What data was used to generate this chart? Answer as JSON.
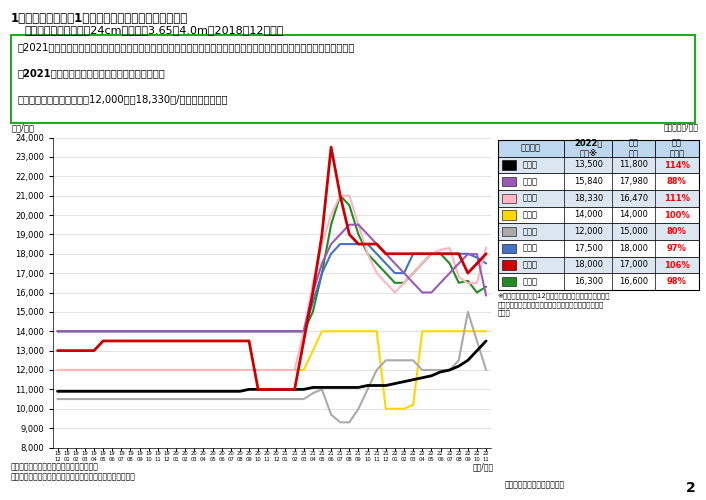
{
  "title_main": "1　価格の動向　（1）原木価格（原木市場・共販所）",
  "title_sub": "ア　スギ（全国）　彄24cm程度、长3.65～4.0m（2018年12月～）",
  "bullet1a": "・2021年４月以降、いわゆるウッドショックにより価格が大きく上昇し、その後一部の地域で下落したが、全般的には、",
  "bullet1b": "　2021年３月以前と比較すると高い水準で推移。",
  "bullet2": "・直近のスギ原木価格は、12,000円～18,330円/㎥となっている。",
  "unit_label": "（円/㎥）",
  "unit_label2": "（単位：円/㎥）",
  "xlabel_label": "（年/月）",
  "note1": "注１：北海道はカラマツ（工場着価格）。",
  "note2": "注２：都道府県が選定した特定の原木市場・共販所の価格。",
  "source": "資料：林野庁木材産業課調べ",
  "page": "2",
  "table_note": "※北海道については12月、秋田県、栃木県、長野県、岡\n山県、高知県、熊本県及び宮崎県については１月の値を\n使用。",
  "ylim": [
    8000,
    24000
  ],
  "yticks": [
    8000,
    9000,
    10000,
    11000,
    12000,
    13000,
    14000,
    15000,
    16000,
    17000,
    18000,
    19000,
    20000,
    21000,
    22000,
    23000,
    24000
  ],
  "table_rows": [
    {
      "name": "北海道",
      "color": "#000000",
      "v2022": "13,500",
      "prev": "11,800",
      "ratio": "114%"
    },
    {
      "name": "秋田県",
      "color": "#9b59b6",
      "v2022": "15,840",
      "prev": "17,980",
      "ratio": "88%"
    },
    {
      "name": "栃木県",
      "color": "#ffb6c1",
      "v2022": "18,330",
      "prev": "16,470",
      "ratio": "111%"
    },
    {
      "name": "長野県",
      "color": "#ffd700",
      "v2022": "14,000",
      "prev": "14,000",
      "ratio": "100%"
    },
    {
      "name": "岡山県",
      "color": "#aaaaaa",
      "v2022": "12,000",
      "prev": "15,000",
      "ratio": "80%"
    },
    {
      "name": "高知県",
      "color": "#4472c4",
      "v2022": "17,500",
      "prev": "18,000",
      "ratio": "97%"
    },
    {
      "name": "熊本県",
      "color": "#cc0000",
      "v2022": "18,000",
      "prev": "17,000",
      "ratio": "106%"
    },
    {
      "name": "宮崎県",
      "color": "#228B22",
      "v2022": "16,300",
      "prev": "16,600",
      "ratio": "98%"
    }
  ],
  "series": {
    "北海道": {
      "color": "#000000",
      "lw": 2.0,
      "data": [
        10900,
        10900,
        10900,
        10900,
        10900,
        10900,
        10900,
        10900,
        10900,
        10900,
        10900,
        10900,
        10900,
        10900,
        10900,
        10900,
        10900,
        10900,
        10900,
        10900,
        10900,
        11000,
        11000,
        11000,
        11000,
        11000,
        11000,
        11000,
        11100,
        11100,
        11100,
        11100,
        11100,
        11100,
        11200,
        11200,
        11200,
        11300,
        11400,
        11500,
        11600,
        11700,
        11900,
        12000,
        12200,
        12500,
        13000,
        13500
      ]
    },
    "秋田県": {
      "color": "#9b59b6",
      "lw": 1.5,
      "data": [
        14000,
        14000,
        14000,
        14000,
        14000,
        14000,
        14000,
        14000,
        14000,
        14000,
        14000,
        14000,
        14000,
        14000,
        14000,
        14000,
        14000,
        14000,
        14000,
        14000,
        14000,
        14000,
        14000,
        14000,
        14000,
        14000,
        14000,
        14000,
        16000,
        17500,
        18500,
        19000,
        19500,
        19500,
        19000,
        18500,
        18000,
        17500,
        17000,
        16500,
        16000,
        16000,
        16500,
        17000,
        17500,
        17980,
        17980,
        15840
      ]
    },
    "栃木県": {
      "color": "#ffb6c1",
      "lw": 1.5,
      "data": [
        12000,
        12000,
        12000,
        12000,
        12000,
        12000,
        12000,
        12000,
        12000,
        12000,
        12000,
        12000,
        12000,
        12000,
        12000,
        12000,
        12000,
        12000,
        12000,
        12000,
        12000,
        12000,
        12000,
        12000,
        12000,
        12000,
        12000,
        14000,
        16500,
        18500,
        20000,
        21000,
        21000,
        19500,
        18000,
        17000,
        16500,
        16000,
        16500,
        17000,
        17500,
        18000,
        18200,
        18300,
        16800,
        16470,
        16500,
        18330
      ]
    },
    "長野県": {
      "color": "#ffd700",
      "lw": 1.5,
      "data": [
        12000,
        12000,
        12000,
        12000,
        12000,
        12000,
        12000,
        12000,
        12000,
        12000,
        12000,
        12000,
        12000,
        12000,
        12000,
        12000,
        12000,
        12000,
        12000,
        12000,
        12000,
        12000,
        12000,
        12000,
        12000,
        12000,
        12000,
        12000,
        13000,
        14000,
        14000,
        14000,
        14000,
        14000,
        14000,
        14000,
        10000,
        10000,
        10000,
        10200,
        14000,
        14000,
        14000,
        14000,
        14000,
        14000,
        14000,
        14000
      ]
    },
    "岡山県": {
      "color": "#aaaaaa",
      "lw": 1.5,
      "data": [
        10500,
        10500,
        10500,
        10500,
        10500,
        10500,
        10500,
        10500,
        10500,
        10500,
        10500,
        10500,
        10500,
        10500,
        10500,
        10500,
        10500,
        10500,
        10500,
        10500,
        10500,
        10500,
        10500,
        10500,
        10500,
        10500,
        10500,
        10500,
        10800,
        11000,
        9700,
        9300,
        9300,
        10000,
        11000,
        12000,
        12500,
        12500,
        12500,
        12500,
        12000,
        12000,
        12000,
        12000,
        12500,
        15000,
        13500,
        12000
      ]
    },
    "高知県": {
      "color": "#4472c4",
      "lw": 1.5,
      "data": [
        14000,
        14000,
        14000,
        14000,
        14000,
        14000,
        14000,
        14000,
        14000,
        14000,
        14000,
        14000,
        14000,
        14000,
        14000,
        14000,
        14000,
        14000,
        14000,
        14000,
        14000,
        14000,
        14000,
        14000,
        14000,
        14000,
        14000,
        14000,
        15500,
        17000,
        18000,
        18500,
        18500,
        18500,
        18500,
        18000,
        17500,
        17000,
        17000,
        18000,
        18000,
        18000,
        18000,
        18000,
        18000,
        18000,
        17800,
        17500
      ]
    },
    "熊本県": {
      "color": "#cc0000",
      "lw": 2.0,
      "data": [
        13000,
        13000,
        13000,
        13000,
        13000,
        13500,
        13500,
        13500,
        13500,
        13500,
        13500,
        13500,
        13500,
        13500,
        13500,
        13500,
        13500,
        13500,
        13500,
        13500,
        13500,
        13500,
        11000,
        11000,
        11000,
        11000,
        11000,
        13500,
        16000,
        19000,
        23500,
        21000,
        19000,
        18500,
        18500,
        18500,
        18000,
        18000,
        18000,
        18000,
        18000,
        18000,
        18000,
        18000,
        18000,
        17000,
        17500,
        18000
      ]
    },
    "宮崎県": {
      "color": "#228B22",
      "lw": 1.5,
      "data": [
        14000,
        14000,
        14000,
        14000,
        14000,
        14000,
        14000,
        14000,
        14000,
        14000,
        14000,
        14000,
        14000,
        14000,
        14000,
        14000,
        14000,
        14000,
        14000,
        14000,
        14000,
        14000,
        14000,
        14000,
        14000,
        14000,
        14000,
        14000,
        15000,
        17000,
        19500,
        21000,
        20500,
        19000,
        18000,
        17500,
        17000,
        16500,
        16500,
        17000,
        17500,
        18000,
        18000,
        17500,
        16500,
        16600,
        16000,
        16300
      ]
    }
  },
  "n_points": 48,
  "start_year": 2018,
  "start_month": 12
}
